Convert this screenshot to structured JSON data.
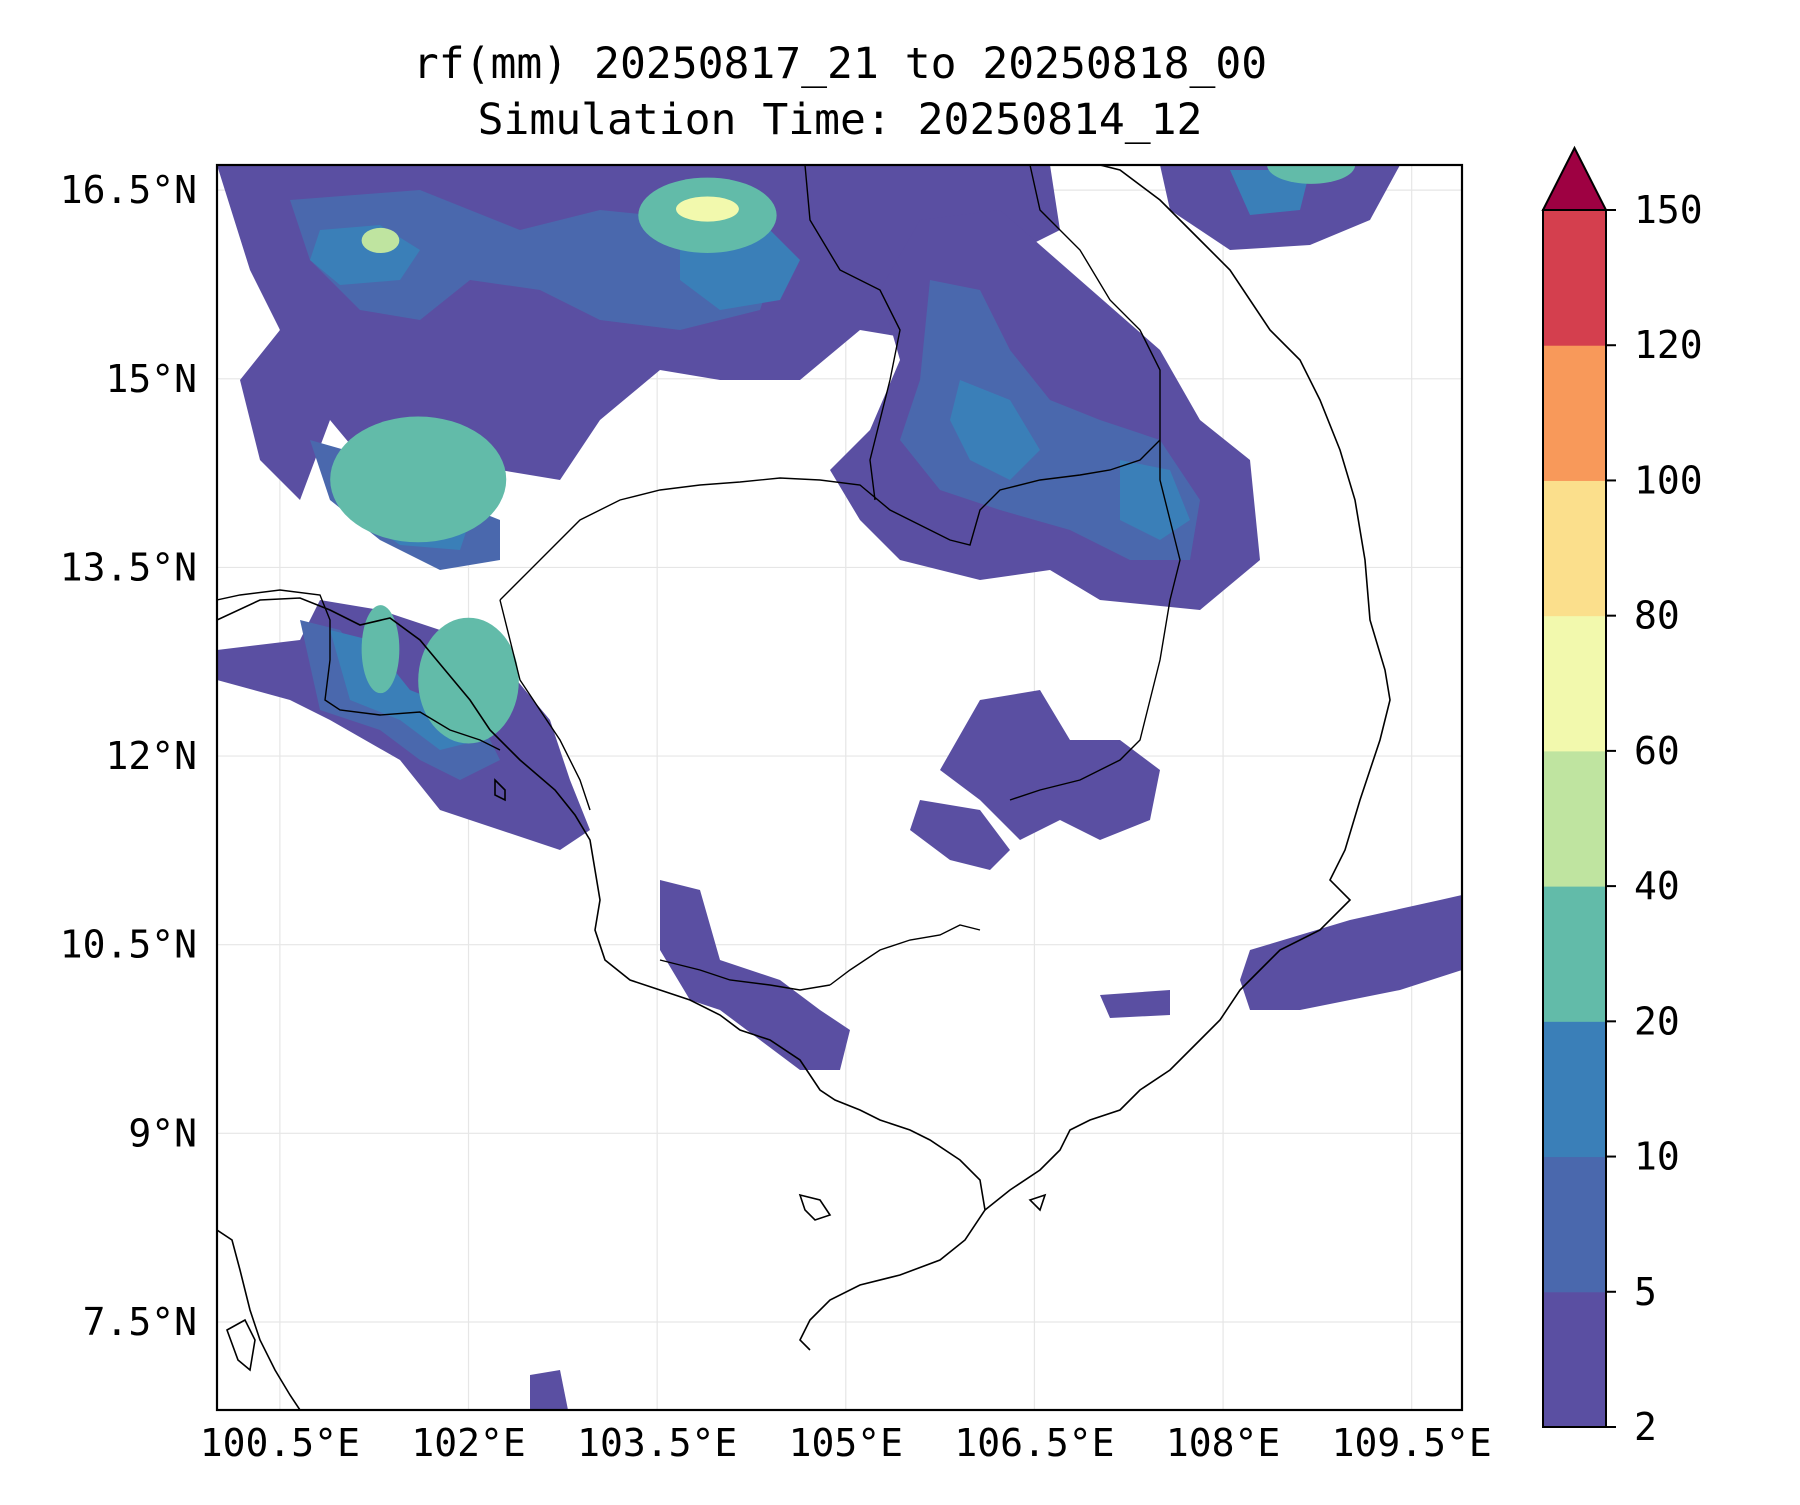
{
  "title": {
    "line1": "rf(mm) 20250817_21 to 20250818_00",
    "line2": "Simulation Time: 20250814_12"
  },
  "map": {
    "lon_range": [
      100.0,
      109.9
    ],
    "lat_range": [
      6.8,
      16.7
    ],
    "lon_ticks": [
      {
        "value": 100.5,
        "label": "100.5°E"
      },
      {
        "value": 102.0,
        "label": "102°E"
      },
      {
        "value": 103.5,
        "label": "103.5°E"
      },
      {
        "value": 105.0,
        "label": "105°E"
      },
      {
        "value": 106.5,
        "label": "106.5°E"
      },
      {
        "value": 108.0,
        "label": "108°E"
      },
      {
        "value": 109.5,
        "label": "109.5°E"
      }
    ],
    "lat_ticks": [
      {
        "value": 7.5,
        "label": "7.5°N"
      },
      {
        "value": 9.0,
        "label": "9°N"
      },
      {
        "value": 10.5,
        "label": "10.5°N"
      },
      {
        "value": 12.0,
        "label": "12°N"
      },
      {
        "value": 13.5,
        "label": "13.5°N"
      },
      {
        "value": 15.0,
        "label": "15°N"
      },
      {
        "value": 16.5,
        "label": "16.5°N"
      }
    ],
    "gridlines": true
  },
  "colorbar": {
    "levels": [
      2,
      5,
      10,
      20,
      40,
      60,
      80,
      100,
      120,
      150
    ],
    "level_labels": [
      "2",
      "5",
      "10",
      "20",
      "40",
      "60",
      "80",
      "100",
      "120",
      "150"
    ],
    "colors": [
      "#5a4fa2",
      "#4a68ad",
      "#3a7fb8",
      "#62bba9",
      "#bfe4a0",
      "#f2f9ad",
      "#fbdf8c",
      "#f8995a",
      "#d43f4e"
    ],
    "extend_color": "#9e0142",
    "extend": "max"
  },
  "rain_cells": [
    {
      "lon": 101.6,
      "lat": 14.2,
      "rx": 0.7,
      "ry": 0.5,
      "level": 3
    },
    {
      "lon": 103.9,
      "lat": 16.3,
      "rx": 0.55,
      "ry": 0.3,
      "level": 3
    },
    {
      "lon": 102.0,
      "lat": 12.6,
      "rx": 0.4,
      "ry": 0.5,
      "level": 3
    },
    {
      "lon": 101.3,
      "lat": 12.85,
      "rx": 0.15,
      "ry": 0.35,
      "level": 3
    },
    {
      "lon": 108.7,
      "lat": 16.7,
      "rx": 0.35,
      "ry": 0.15,
      "level": 3
    },
    {
      "lon": 103.9,
      "lat": 16.35,
      "rx": 0.25,
      "ry": 0.1,
      "level": 5
    },
    {
      "lon": 101.3,
      "lat": 16.1,
      "rx": 0.15,
      "ry": 0.1,
      "level": 4
    }
  ]
}
